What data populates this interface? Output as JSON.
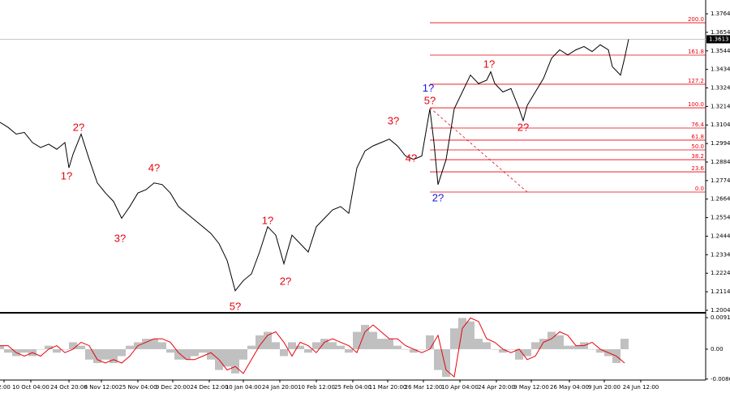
{
  "chart_data": [
    {
      "type": "line",
      "color": "#000000",
      "x": [
        0,
        10,
        20,
        30,
        40,
        50,
        60,
        70,
        80,
        85,
        90,
        100,
        110,
        120,
        130,
        140,
        150,
        160,
        170,
        180,
        190,
        200,
        210,
        220,
        230,
        240,
        250,
        260,
        270,
        280,
        290,
        300,
        310,
        320,
        330,
        340,
        350,
        360,
        370,
        380,
        390,
        400,
        410,
        420,
        430,
        440,
        450,
        460,
        470,
        480,
        490,
        500,
        510,
        520,
        530,
        535,
        540,
        550,
        560,
        570,
        580,
        590,
        600,
        605,
        610,
        620,
        630,
        640,
        645,
        650,
        660,
        670,
        680,
        690,
        700,
        710,
        720,
        730,
        740,
        750,
        755,
        765,
        770,
        775
      ],
      "values": [
        1.312,
        1.309,
        1.305,
        1.306,
        1.3,
        1.297,
        1.299,
        1.296,
        1.3,
        1.285,
        1.293,
        1.305,
        1.29,
        1.276,
        1.27,
        1.265,
        1.255,
        1.262,
        1.27,
        1.272,
        1.276,
        1.275,
        1.27,
        1.262,
        1.258,
        1.254,
        1.25,
        1.246,
        1.24,
        1.23,
        1.212,
        1.218,
        1.222,
        1.235,
        1.25,
        1.245,
        1.228,
        1.245,
        1.24,
        1.235,
        1.25,
        1.255,
        1.26,
        1.262,
        1.258,
        1.285,
        1.295,
        1.298,
        1.3,
        1.302,
        1.298,
        1.292,
        1.29,
        1.292,
        1.32,
        1.3,
        1.275,
        1.29,
        1.32,
        1.33,
        1.34,
        1.335,
        1.337,
        1.342,
        1.335,
        1.33,
        1.332,
        1.32,
        1.313,
        1.322,
        1.33,
        1.338,
        1.35,
        1.355,
        1.352,
        1.355,
        1.357,
        1.354,
        1.358,
        1.355,
        1.345,
        1.34,
        1.35,
        1.3613
      ],
      "xlim": [
        0,
        870
      ],
      "ylim": [
        1.1994,
        1.3846
      ],
      "yticks": [
        1.3764,
        1.3654,
        1.3544,
        1.3434,
        1.3324,
        1.3214,
        1.3104,
        1.2994,
        1.2884,
        1.2774,
        1.2664,
        1.2554,
        1.2444,
        1.2334,
        1.2224,
        1.2114,
        1.2004
      ],
      "fib_color": "#e8000b",
      "fib_levels": [
        {
          "label": "200.0",
          "price": 1.3711
        },
        {
          "label": "161.8",
          "price": 1.3519
        },
        {
          "label": "127.2",
          "price": 1.3346
        },
        {
          "label": "100.0",
          "price": 1.3206
        },
        {
          "label": "76.4",
          "price": 1.3086
        },
        {
          "label": "61.8",
          "price": 1.3014
        },
        {
          "label": "50.0",
          "price": 1.2956
        },
        {
          "label": "38.2",
          "price": 1.2898
        },
        {
          "label": "23.6",
          "price": 1.2826
        },
        {
          "label": "0.0",
          "price": 1.2706
        }
      ],
      "annotations": [
        {
          "text": "2?",
          "x": 97,
          "y": 1.3085,
          "color": "#e8000b"
        },
        {
          "text": "1?",
          "x": 82,
          "y": 1.2796,
          "color": "#e8000b"
        },
        {
          "text": "3?",
          "x": 148,
          "y": 1.2427,
          "color": "#e8000b"
        },
        {
          "text": "4?",
          "x": 190,
          "y": 1.2845,
          "color": "#e8000b"
        },
        {
          "text": "5?",
          "x": 290,
          "y": 1.2023,
          "color": "#e8000b"
        },
        {
          "text": "1?",
          "x": 330,
          "y": 1.2532,
          "color": "#e8000b"
        },
        {
          "text": "2?",
          "x": 352,
          "y": 1.2172,
          "color": "#e8000b"
        },
        {
          "text": "3?",
          "x": 485,
          "y": 1.3125,
          "color": "#e8000b"
        },
        {
          "text": "4?",
          "x": 507,
          "y": 1.2903,
          "color": "#e8000b"
        },
        {
          "text": "5?",
          "x": 530,
          "y": 1.3245,
          "color": "#e8000b"
        },
        {
          "text": "1?",
          "x": 528,
          "y": 1.3318,
          "color": "#1a1ad6"
        },
        {
          "text": "2?",
          "x": 540,
          "y": 1.2666,
          "color": "#1a1ad6"
        },
        {
          "text": "1?",
          "x": 603,
          "y": 1.3462,
          "color": "#e8000b"
        },
        {
          "text": "2?",
          "x": 645,
          "y": 1.3085,
          "color": "#e8000b"
        }
      ],
      "xticks": [
        {
          "value": 5,
          "label": "2:00"
        },
        {
          "value": 38,
          "label": "10 Oct 04:00"
        },
        {
          "value": 85,
          "label": "24 Oct 20:00"
        },
        {
          "value": 125,
          "label": "8 Nov 12:00"
        },
        {
          "value": 170,
          "label": "25 Nov 04:00"
        },
        {
          "value": 213,
          "label": "9 Dec 20:00"
        },
        {
          "value": 258,
          "label": "24 Dec 12:00"
        },
        {
          "value": 300,
          "label": "10 Jan 04:00"
        },
        {
          "value": 345,
          "label": "24 Jan 20:00"
        },
        {
          "value": 390,
          "label": "10 Feb 12:00"
        },
        {
          "value": 435,
          "label": "25 Feb 04:00"
        },
        {
          "value": 478,
          "label": "11 Mar 20:00"
        },
        {
          "value": 522,
          "label": "26 Mar 12:00"
        },
        {
          "value": 567,
          "label": "10 Apr 04:00"
        },
        {
          "value": 612,
          "label": "24 Apr 20:00"
        },
        {
          "value": 655,
          "label": "9 May 12:00"
        },
        {
          "value": 702,
          "label": "26 May 04:00"
        },
        {
          "value": 745,
          "label": "9 Jun 20:00"
        },
        {
          "value": 790,
          "label": "24 Jun 12:00"
        }
      ]
    },
    {
      "type": "histogram_line",
      "xlim": [
        0,
        870
      ],
      "ylim": [
        -0.0089,
        0.0098
      ],
      "yticks": [
        0.0091,
        {
          "value": 0,
          "label": "0.00"
        },
        -0.00862
      ],
      "x": [
        0,
        10,
        20,
        30,
        40,
        50,
        60,
        70,
        80,
        90,
        100,
        110,
        120,
        130,
        140,
        150,
        160,
        170,
        180,
        190,
        200,
        210,
        220,
        230,
        240,
        250,
        260,
        270,
        280,
        290,
        300,
        310,
        320,
        330,
        340,
        350,
        360,
        370,
        380,
        390,
        400,
        410,
        420,
        430,
        440,
        450,
        460,
        470,
        480,
        490,
        500,
        510,
        520,
        530,
        540,
        550,
        560,
        570,
        580,
        590,
        600,
        610,
        620,
        630,
        640,
        650,
        660,
        670,
        680,
        690,
        700,
        710,
        720,
        730,
        740,
        750,
        760,
        770
      ],
      "series": [
        {
          "color": "#c0c0c0",
          "values": [
            0.001,
            -0.001,
            -0.002,
            -0.001,
            -0.002,
            0,
            0.001,
            -0.001,
            0,
            0.002,
            0.001,
            -0.003,
            -0.004,
            -0.003,
            -0.004,
            -0.002,
            0.001,
            0.002,
            0.003,
            0.003,
            0.002,
            -0.001,
            -0.003,
            -0.003,
            -0.002,
            -0.001,
            -0.003,
            -0.006,
            -0.005,
            -0.007,
            -0.003,
            0.001,
            0.004,
            0.005,
            0.002,
            -0.002,
            0.002,
            0.001,
            -0.001,
            0.002,
            0.003,
            0.002,
            0.001,
            -0.001,
            0.005,
            0.007,
            0.005,
            0.003,
            0.003,
            0.001,
            0,
            -0.001,
            0,
            0.004,
            -0.006,
            -0.008,
            0.006,
            0.009,
            0.008,
            0.003,
            0.002,
            0,
            -0.001,
            0,
            -0.003,
            -0.002,
            0.002,
            0.003,
            0.005,
            0.004,
            0.001,
            0.001,
            0.002,
            0,
            -0.001,
            -0.002,
            -0.004,
            0.003
          ]
        },
        {
          "color": "#e8000b",
          "values": [
            0.001,
            0.001,
            -0.001,
            -0.002,
            -0.001,
            -0.002,
            0,
            0.001,
            -0.001,
            0,
            0.002,
            0.001,
            -0.003,
            -0.004,
            -0.003,
            -0.004,
            -0.002,
            0.001,
            0.002,
            0.003,
            0.003,
            0.002,
            -0.001,
            -0.003,
            -0.003,
            -0.002,
            -0.001,
            -0.003,
            -0.006,
            -0.005,
            -0.007,
            -0.003,
            0.001,
            0.004,
            0.005,
            0.002,
            -0.002,
            0.002,
            0.001,
            -0.001,
            0.002,
            0.003,
            0.002,
            0.001,
            -0.001,
            0.005,
            0.007,
            0.005,
            0.003,
            0.003,
            0.001,
            0,
            -0.001,
            0,
            0.004,
            -0.006,
            -0.008,
            0.006,
            0.009,
            0.008,
            0.003,
            0.002,
            0,
            -0.001,
            0,
            -0.003,
            -0.002,
            0.002,
            0.003,
            0.005,
            0.004,
            0.001,
            0.001,
            0.002,
            0,
            -0.001,
            -0.002,
            -0.004
          ]
        }
      ]
    }
  ]
}
